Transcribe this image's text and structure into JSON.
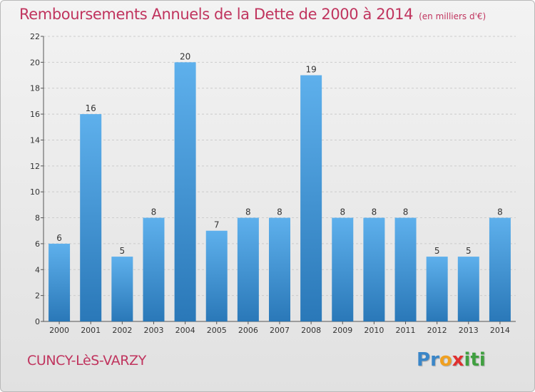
{
  "title": "Remboursements Annuels de la Dette de 2000 à 2014",
  "title_unit": "(en milliers d'€)",
  "commune": "CUNCY-LèS-VARZY",
  "logo": {
    "letters": [
      "P",
      "r",
      "o",
      "x",
      "i",
      "t",
      "i"
    ],
    "colors": [
      "#3a86c8",
      "#3a86c8",
      "#f0a020",
      "#e03030",
      "#40a040",
      "#40a040",
      "#40a040"
    ]
  },
  "colors": {
    "title": "#c0345e",
    "bar_light": "#5eb0ec",
    "bar_dark": "#2a78b8",
    "grid": "#cccccc"
  },
  "chart_data": {
    "type": "bar",
    "categories": [
      "2000",
      "2001",
      "2002",
      "2003",
      "2004",
      "2005",
      "2006",
      "2007",
      "2008",
      "2009",
      "2010",
      "2011",
      "2012",
      "2013",
      "2014"
    ],
    "values": [
      6,
      16,
      5,
      8,
      20,
      7,
      8,
      8,
      19,
      8,
      8,
      8,
      5,
      5,
      8
    ],
    "ylim": [
      0,
      22
    ],
    "yticks": [
      0,
      2,
      4,
      6,
      8,
      10,
      12,
      14,
      16,
      18,
      20,
      22
    ],
    "grid": true,
    "xlabel": "",
    "ylabel": ""
  }
}
